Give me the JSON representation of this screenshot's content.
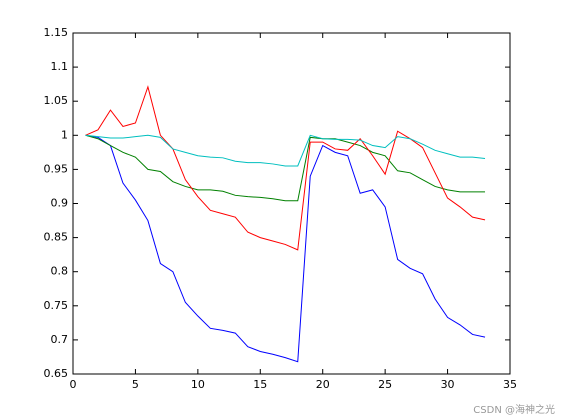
{
  "chart_data": {
    "type": "line",
    "x": [
      1,
      2,
      3,
      4,
      5,
      6,
      7,
      8,
      9,
      10,
      11,
      12,
      13,
      14,
      15,
      16,
      17,
      18,
      19,
      20,
      21,
      22,
      23,
      24,
      25,
      26,
      27,
      28,
      29,
      30,
      31,
      32,
      33
    ],
    "series": [
      {
        "color": "#0000ff",
        "values": [
          1.0,
          0.997,
          0.985,
          0.93,
          0.905,
          0.875,
          0.812,
          0.8,
          0.755,
          0.735,
          0.717,
          0.714,
          0.71,
          0.69,
          0.683,
          0.679,
          0.674,
          0.668,
          0.94,
          0.985,
          0.975,
          0.97,
          0.915,
          0.92,
          0.895,
          0.818,
          0.805,
          0.797,
          0.76,
          0.733,
          0.722,
          0.708,
          0.704
        ]
      },
      {
        "color": "#008000",
        "values": [
          1.0,
          0.995,
          0.985,
          0.975,
          0.968,
          0.95,
          0.947,
          0.932,
          0.925,
          0.92,
          0.92,
          0.918,
          0.912,
          0.91,
          0.909,
          0.907,
          0.904,
          0.904,
          0.997,
          0.995,
          0.995,
          0.99,
          0.985,
          0.975,
          0.97,
          0.948,
          0.945,
          0.935,
          0.925,
          0.92,
          0.917,
          0.917,
          0.917
        ]
      },
      {
        "color": "#ff0000",
        "values": [
          1.0,
          1.008,
          1.037,
          1.013,
          1.018,
          1.071,
          1.0,
          0.98,
          0.935,
          0.91,
          0.89,
          0.885,
          0.88,
          0.858,
          0.85,
          0.845,
          0.84,
          0.832,
          0.99,
          0.99,
          0.98,
          0.978,
          0.995,
          0.97,
          0.943,
          1.006,
          0.995,
          0.982,
          0.945,
          0.908,
          0.895,
          0.88,
          0.876
        ]
      },
      {
        "color": "#00bfbf",
        "values": [
          1.0,
          0.998,
          0.996,
          0.996,
          0.998,
          1.0,
          0.997,
          0.98,
          0.975,
          0.97,
          0.968,
          0.967,
          0.962,
          0.96,
          0.96,
          0.958,
          0.955,
          0.955,
          1.0,
          0.995,
          0.994,
          0.994,
          0.993,
          0.985,
          0.982,
          0.998,
          0.995,
          0.987,
          0.978,
          0.973,
          0.968,
          0.968,
          0.966
        ]
      }
    ],
    "xlim": [
      0,
      35
    ],
    "xticks": [
      0,
      5,
      10,
      15,
      20,
      25,
      30,
      35
    ],
    "ylim": [
      0.65,
      1.15
    ],
    "yticks": [
      0.65,
      0.7,
      0.75,
      0.8,
      0.85,
      0.9,
      0.95,
      1,
      1.05,
      1.1,
      1.15
    ],
    "grid": false
  },
  "watermark": "CSDN @海神之光"
}
